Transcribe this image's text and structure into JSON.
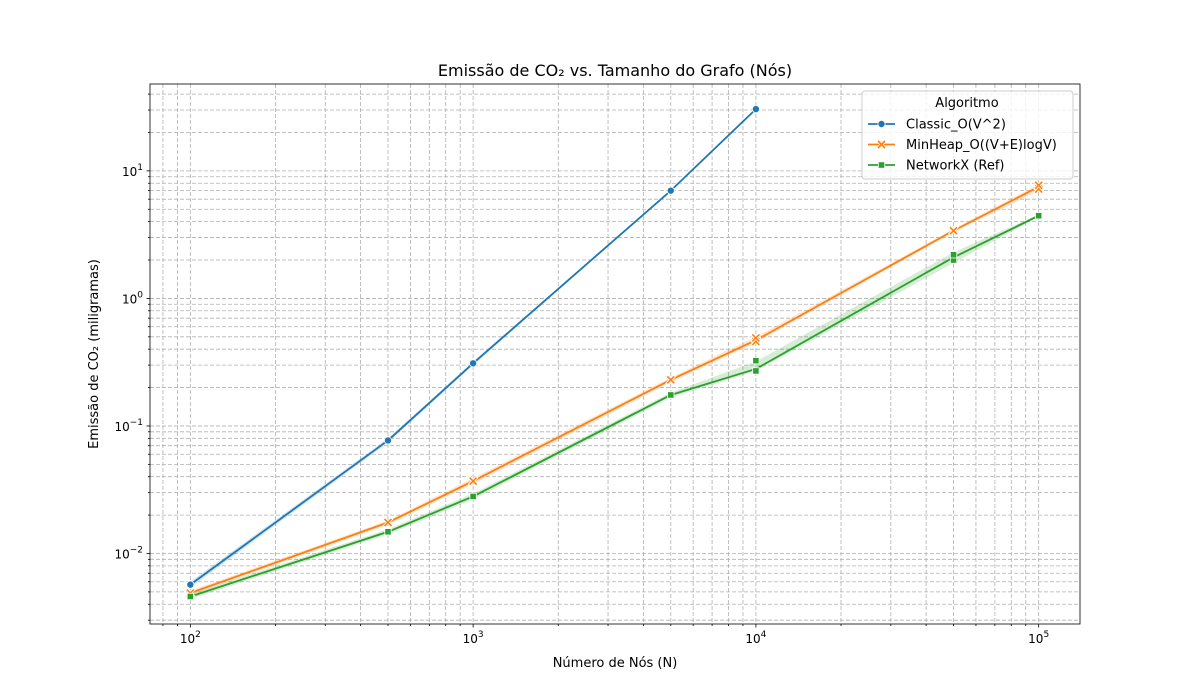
{
  "chart_data": {
    "type": "line",
    "title": "Emissão de CO₂ vs. Tamanho do Grafo (Nós)",
    "xlabel": "Número de Nós (N)",
    "ylabel": "Emissão de CO₂ (miligramas)",
    "xscale": "log",
    "yscale": "log",
    "xlim": [
      72,
      140000
    ],
    "ylim": [
      0.0028,
      48
    ],
    "x_ticks": [
      {
        "value": 100,
        "base": "10",
        "exp": "2"
      },
      {
        "value": 1000,
        "base": "10",
        "exp": "3"
      },
      {
        "value": 10000,
        "base": "10",
        "exp": "4"
      },
      {
        "value": 100000,
        "base": "10",
        "exp": "5"
      }
    ],
    "y_ticks": [
      {
        "value": 0.01,
        "base": "10",
        "exp": "−2"
      },
      {
        "value": 0.1,
        "base": "10",
        "exp": "−1"
      },
      {
        "value": 1,
        "base": "10",
        "exp": "0"
      },
      {
        "value": 10,
        "base": "10",
        "exp": "1"
      }
    ],
    "grid": true,
    "legend": {
      "title": "Algoritmo",
      "position": "top-right"
    },
    "series": [
      {
        "name": "Classic_O(V^2)",
        "color": "#1f77b4",
        "marker": "circle",
        "x": [
          100,
          500,
          1000,
          5000,
          10000
        ],
        "y": [
          0.0057,
          0.077,
          0.31,
          7.0,
          30.5
        ],
        "band_low": [
          0.0054,
          0.074,
          0.3,
          6.9,
          30.0
        ],
        "band_high": [
          0.006,
          0.08,
          0.32,
          7.1,
          31.0
        ],
        "samples": [
          {
            "x": 100,
            "y": 0.0057
          },
          {
            "x": 500,
            "y": 0.077
          },
          {
            "x": 1000,
            "y": 0.31
          },
          {
            "x": 5000,
            "y": 7.0
          },
          {
            "x": 10000,
            "y": 30.5
          }
        ]
      },
      {
        "name": "MinHeap_O((V+E)logV)",
        "color": "#ff7f0e",
        "marker": "x",
        "x": [
          100,
          500,
          1000,
          5000,
          10000,
          50000,
          100000
        ],
        "y": [
          0.0049,
          0.0175,
          0.037,
          0.23,
          0.47,
          3.4,
          7.5
        ],
        "band_low": [
          0.0047,
          0.0168,
          0.035,
          0.22,
          0.45,
          3.3,
          7.0
        ],
        "band_high": [
          0.0051,
          0.0182,
          0.039,
          0.24,
          0.5,
          3.5,
          7.9
        ],
        "samples": [
          {
            "x": 100,
            "y": 0.0049
          },
          {
            "x": 500,
            "y": 0.0175
          },
          {
            "x": 1000,
            "y": 0.037
          },
          {
            "x": 5000,
            "y": 0.23
          },
          {
            "x": 10000,
            "y": 0.46
          },
          {
            "x": 10000,
            "y": 0.49
          },
          {
            "x": 50000,
            "y": 3.4
          },
          {
            "x": 100000,
            "y": 7.2
          },
          {
            "x": 100000,
            "y": 7.7
          }
        ]
      },
      {
        "name": "NetworkX (Ref)",
        "color": "#2ca02c",
        "marker": "square",
        "x": [
          100,
          500,
          1000,
          5000,
          10000,
          50000,
          100000
        ],
        "y": [
          0.0046,
          0.0148,
          0.028,
          0.175,
          0.28,
          2.1,
          4.45
        ],
        "band_low": [
          0.0044,
          0.0141,
          0.0265,
          0.167,
          0.27,
          1.9,
          4.35
        ],
        "band_high": [
          0.0048,
          0.0155,
          0.0295,
          0.183,
          0.32,
          2.3,
          4.55
        ],
        "samples": [
          {
            "x": 100,
            "y": 0.0046
          },
          {
            "x": 500,
            "y": 0.0148
          },
          {
            "x": 1000,
            "y": 0.028
          },
          {
            "x": 5000,
            "y": 0.175
          },
          {
            "x": 10000,
            "y": 0.27
          },
          {
            "x": 10000,
            "y": 0.325
          },
          {
            "x": 50000,
            "y": 2.0
          },
          {
            "x": 50000,
            "y": 2.2
          },
          {
            "x": 100000,
            "y": 4.45
          }
        ]
      }
    ]
  }
}
